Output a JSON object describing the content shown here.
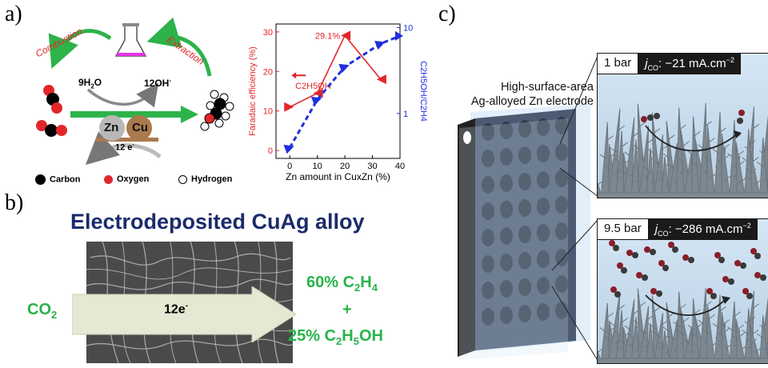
{
  "panel_labels": {
    "a": "a)",
    "b": "b)",
    "c": "c)"
  },
  "panel_a": {
    "combustion": "Combustion",
    "extraction": "Extraction",
    "water": "9H2O",
    "hydroxide": "12OH-",
    "zn": "Zn",
    "cu": "Cu",
    "electrons": "12 e-",
    "legend": {
      "carbon": "Carbon",
      "oxygen": "Oxygen",
      "hydrogen": "Hydrogen"
    },
    "colors": {
      "arrow_green": "#2db34a",
      "oxygen": "#e3262b",
      "carbon": "#000000",
      "flask": "#e633e6",
      "zn": "#b8b8b8",
      "cu": "#a97a4c"
    }
  },
  "chart_data": {
    "type": "line",
    "xlabel": "Zn amount in CuxZn (%)",
    "ylabel_left": "Faradaic efficiency (%)",
    "ylabel_right": "C2H5OH/C2H4",
    "x_ticks": [
      "0",
      "10",
      "20",
      "30",
      "40"
    ],
    "y_left_ticks": [
      "0",
      "10",
      "20",
      "30"
    ],
    "y_right_ticks": [
      "1",
      "10"
    ],
    "xlim": [
      -5,
      40
    ],
    "ylim_left": [
      -2,
      32
    ],
    "ylim_right_log": [
      0.3,
      11
    ],
    "series": [
      {
        "name": "C2H5OH",
        "axis": "left",
        "color": "#e3262b",
        "style": "solid",
        "x": [
          0,
          10,
          20,
          33
        ],
        "y": [
          11,
          14.5,
          29.1,
          18
        ]
      },
      {
        "axis": "right",
        "color": "#1f2fe0",
        "style": "dashed",
        "x": [
          0,
          10,
          20,
          33,
          40
        ],
        "y": [
          0.4,
          1.45,
          3.5,
          6.5,
          8
        ]
      }
    ],
    "annotations": [
      "29.1%"
    ]
  },
  "panel_b": {
    "title": "Electrodeposited CuAg alloy",
    "co2": "CO2",
    "arrow": "12e-",
    "product1": "60% C2H4",
    "plus": "+",
    "product2": "25% C2H5OH"
  },
  "panel_c": {
    "electrode_label_line1": "High-surface-area",
    "electrode_label_line2": "Ag-alloyed Zn electrode",
    "top_pressure": "1 bar",
    "top_current": "jCO: −21 mA.cm−2",
    "bottom_pressure": "9.5 bar",
    "bottom_current": "jCO: −286 mA.cm−2"
  }
}
